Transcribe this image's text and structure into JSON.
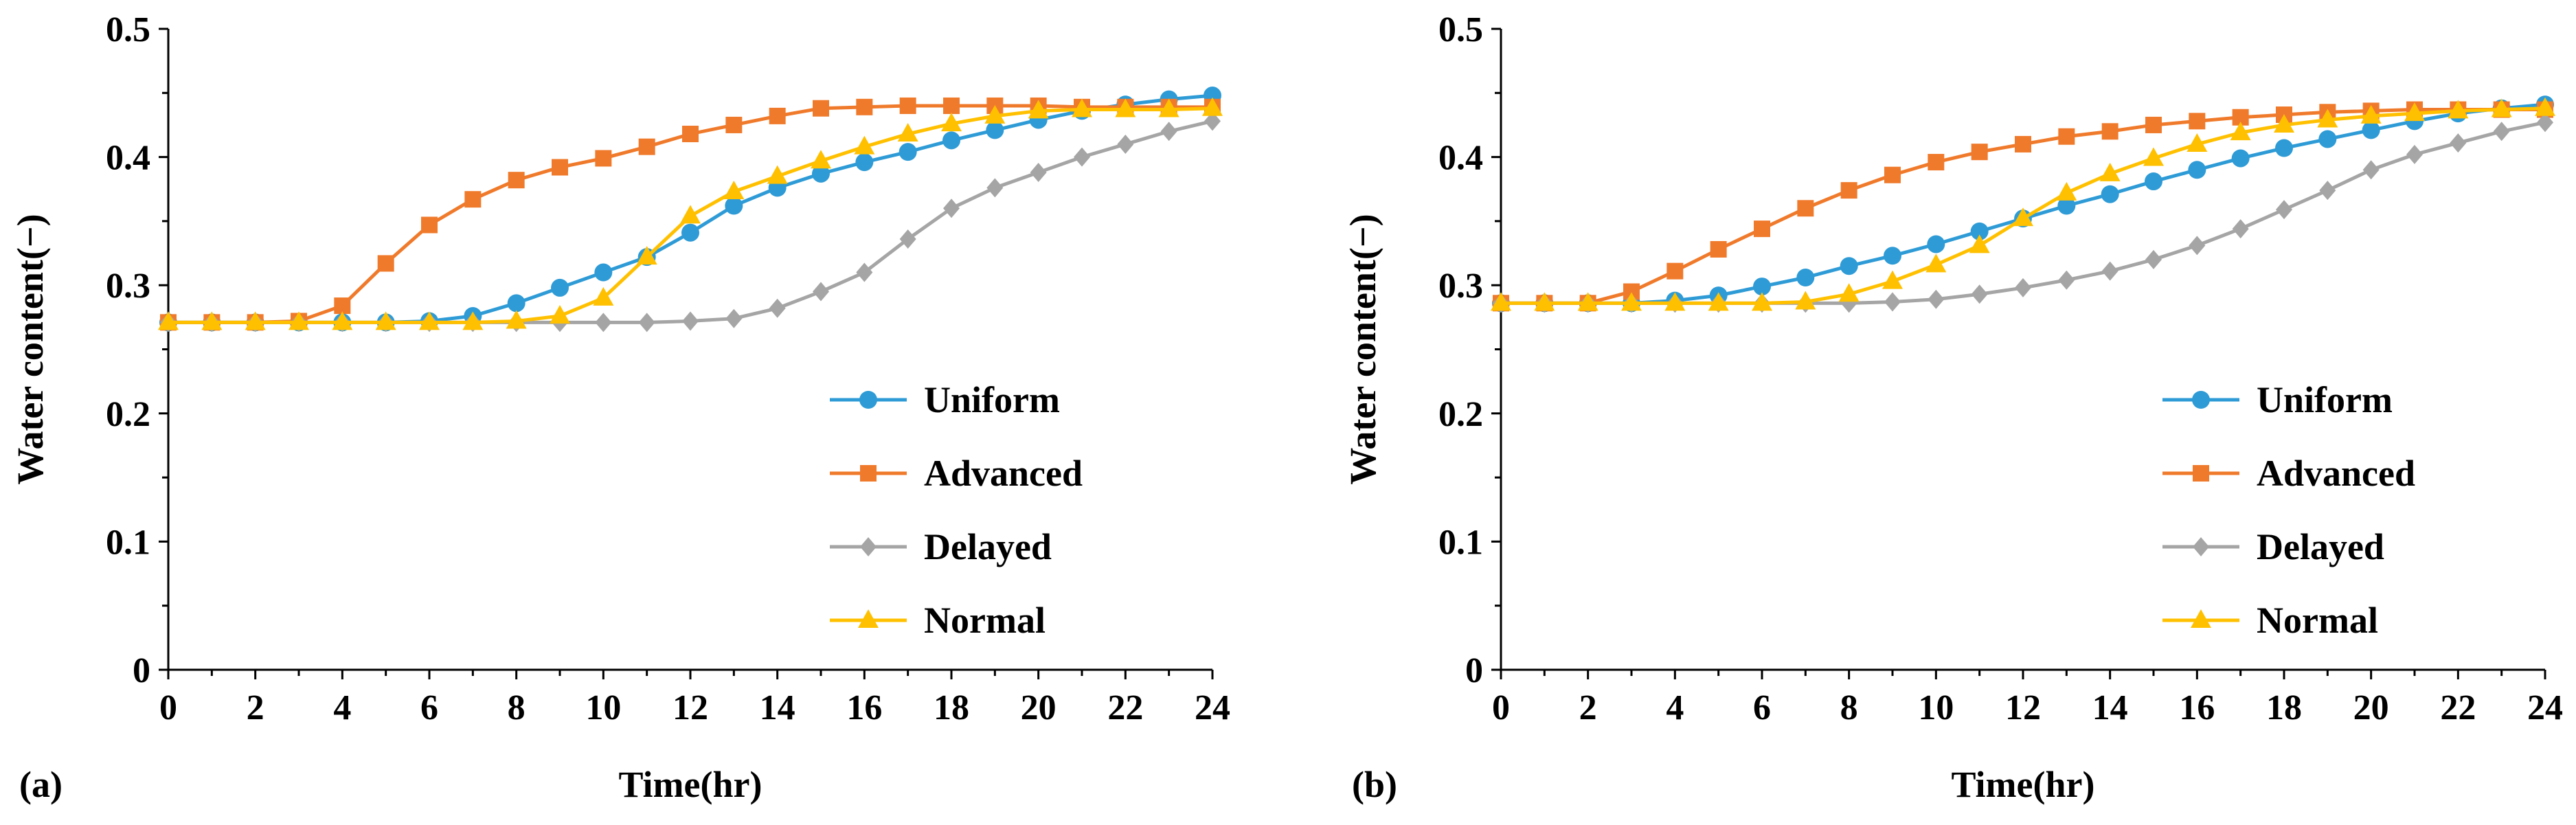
{
  "chart_data": [
    {
      "panel_label": "(a)",
      "type": "line",
      "xlabel": "Time(hr)",
      "ylabel": "Water content(−)",
      "xlim": [
        0,
        24
      ],
      "ylim": [
        0,
        0.5
      ],
      "x_ticks": [
        "0",
        "2",
        "4",
        "6",
        "8",
        "10",
        "12",
        "14",
        "16",
        "18",
        "20",
        "22",
        "24"
      ],
      "y_ticks": [
        "0",
        "0.1",
        "0.2",
        "0.3",
        "0.4",
        "0.5"
      ],
      "grid": false,
      "legend_position": "bottom-right",
      "x": [
        0,
        1,
        2,
        3,
        4,
        5,
        6,
        7,
        8,
        9,
        10,
        11,
        12,
        13,
        14,
        15,
        16,
        17,
        18,
        19,
        20,
        21,
        22,
        23,
        24
      ],
      "series": [
        {
          "name": "Uniform",
          "color": "#2E9BD6",
          "marker": "circle",
          "values": [
            0.271,
            0.271,
            0.271,
            0.271,
            0.271,
            0.271,
            0.272,
            0.276,
            0.286,
            0.298,
            0.31,
            0.322,
            0.341,
            0.362,
            0.376,
            0.387,
            0.396,
            0.404,
            0.413,
            0.421,
            0.429,
            0.436,
            0.441,
            0.445,
            0.448
          ]
        },
        {
          "name": "Advanced",
          "color": "#F07A2B",
          "marker": "square",
          "values": [
            0.271,
            0.271,
            0.271,
            0.272,
            0.284,
            0.317,
            0.347,
            0.367,
            0.382,
            0.392,
            0.399,
            0.408,
            0.418,
            0.425,
            0.432,
            0.438,
            0.439,
            0.44,
            0.44,
            0.44,
            0.44,
            0.439,
            0.439,
            0.439,
            0.439
          ]
        },
        {
          "name": "Delayed",
          "color": "#A5A5A5",
          "marker": "diamond",
          "values": [
            0.271,
            0.271,
            0.271,
            0.271,
            0.271,
            0.271,
            0.271,
            0.271,
            0.271,
            0.271,
            0.271,
            0.271,
            0.272,
            0.274,
            0.282,
            0.295,
            0.31,
            0.336,
            0.36,
            0.376,
            0.388,
            0.4,
            0.41,
            0.42,
            0.428
          ]
        },
        {
          "name": "Normal",
          "color": "#FFC000",
          "marker": "triangle",
          "values": [
            0.271,
            0.271,
            0.271,
            0.271,
            0.271,
            0.271,
            0.271,
            0.271,
            0.272,
            0.276,
            0.29,
            0.322,
            0.354,
            0.373,
            0.385,
            0.397,
            0.408,
            0.418,
            0.426,
            0.432,
            0.436,
            0.437,
            0.437,
            0.437,
            0.438
          ]
        }
      ]
    },
    {
      "panel_label": "(b)",
      "type": "line",
      "xlabel": "Time(hr)",
      "ylabel": "Water content(−)",
      "xlim": [
        0,
        24
      ],
      "ylim": [
        0,
        0.5
      ],
      "x_ticks": [
        "0",
        "2",
        "4",
        "6",
        "8",
        "10",
        "12",
        "14",
        "16",
        "18",
        "20",
        "22",
        "24"
      ],
      "y_ticks": [
        "0",
        "0.1",
        "0.2",
        "0.3",
        "0.4",
        "0.5"
      ],
      "grid": false,
      "legend_position": "bottom-right",
      "x": [
        0,
        1,
        2,
        3,
        4,
        5,
        6,
        7,
        8,
        9,
        10,
        11,
        12,
        13,
        14,
        15,
        16,
        17,
        18,
        19,
        20,
        21,
        22,
        23,
        24
      ],
      "series": [
        {
          "name": "Uniform",
          "color": "#2E9BD6",
          "marker": "circle",
          "values": [
            0.286,
            0.286,
            0.286,
            0.286,
            0.288,
            0.292,
            0.299,
            0.306,
            0.315,
            0.323,
            0.332,
            0.342,
            0.352,
            0.362,
            0.371,
            0.381,
            0.39,
            0.399,
            0.407,
            0.414,
            0.421,
            0.428,
            0.434,
            0.438,
            0.441
          ]
        },
        {
          "name": "Advanced",
          "color": "#F07A2B",
          "marker": "square",
          "values": [
            0.286,
            0.286,
            0.286,
            0.295,
            0.311,
            0.328,
            0.344,
            0.36,
            0.374,
            0.386,
            0.396,
            0.404,
            0.41,
            0.416,
            0.42,
            0.425,
            0.428,
            0.431,
            0.433,
            0.435,
            0.436,
            0.437,
            0.437,
            0.437,
            0.437
          ]
        },
        {
          "name": "Delayed",
          "color": "#A5A5A5",
          "marker": "diamond",
          "values": [
            0.286,
            0.286,
            0.286,
            0.286,
            0.286,
            0.286,
            0.286,
            0.286,
            0.286,
            0.287,
            0.289,
            0.293,
            0.298,
            0.304,
            0.311,
            0.32,
            0.331,
            0.344,
            0.359,
            0.374,
            0.39,
            0.402,
            0.411,
            0.42,
            0.427
          ]
        },
        {
          "name": "Normal",
          "color": "#FFC000",
          "marker": "triangle",
          "values": [
            0.286,
            0.286,
            0.286,
            0.286,
            0.286,
            0.286,
            0.286,
            0.287,
            0.293,
            0.303,
            0.316,
            0.331,
            0.352,
            0.372,
            0.387,
            0.399,
            0.41,
            0.419,
            0.425,
            0.429,
            0.432,
            0.434,
            0.436,
            0.437,
            0.438
          ]
        }
      ]
    }
  ]
}
